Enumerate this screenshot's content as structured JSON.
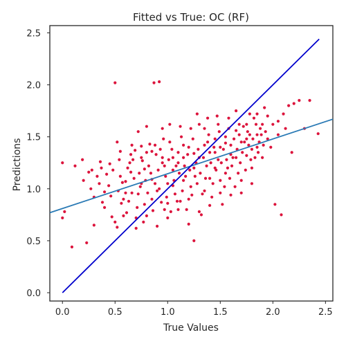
{
  "chart_data": {
    "type": "scatter",
    "title": "Fitted vs True: OC (RF)",
    "xlabel": "True Values",
    "ylabel": "Predictions",
    "xlim": [
      -0.12,
      2.57
    ],
    "ylim": [
      -0.08,
      2.57
    ],
    "x_ticks": [
      0.0,
      0.5,
      1.0,
      1.5,
      2.0,
      2.5
    ],
    "x_tick_labels": [
      "0.0",
      "0.5",
      "1.0",
      "1.5",
      "2.0",
      "2.5"
    ],
    "y_ticks": [
      0.0,
      0.5,
      1.0,
      1.5,
      2.0,
      2.5
    ],
    "y_tick_labels": [
      "0.0",
      "0.5",
      "1.0",
      "1.5",
      "2.0",
      "2.5"
    ],
    "grid": false,
    "legend": "none",
    "colors": {
      "points": "#dc143c",
      "identity_line": "#0000cc",
      "fit_line": "#2a7ab5",
      "axes": "#262626"
    },
    "identity_line": [
      [
        0.0,
        0.0
      ],
      [
        2.44,
        2.44
      ]
    ],
    "fit_line": [
      [
        -0.12,
        0.77
      ],
      [
        2.57,
        1.67
      ]
    ],
    "points": [
      [
        0.0,
        1.25
      ],
      [
        0.02,
        0.78
      ],
      [
        0.0,
        0.72
      ],
      [
        0.09,
        0.44
      ],
      [
        0.23,
        0.48
      ],
      [
        0.19,
        1.28
      ],
      [
        0.28,
        1.18
      ],
      [
        0.3,
        0.92
      ],
      [
        0.35,
        1.05
      ],
      [
        0.38,
        0.87
      ],
      [
        0.3,
        0.65
      ],
      [
        0.47,
        0.73
      ],
      [
        0.52,
        0.63
      ],
      [
        0.5,
        2.02
      ],
      [
        0.52,
        1.45
      ],
      [
        0.55,
        1.12
      ],
      [
        0.58,
        0.9
      ],
      [
        0.62,
        1.2
      ],
      [
        0.65,
        1.33
      ],
      [
        0.67,
        1.28
      ],
      [
        0.7,
        0.72
      ],
      [
        0.72,
        0.95
      ],
      [
        0.75,
        1.41
      ],
      [
        0.78,
        0.85
      ],
      [
        0.8,
        1.35
      ],
      [
        0.82,
        1.22
      ],
      [
        0.85,
        0.9
      ],
      [
        0.87,
        2.02
      ],
      [
        0.88,
        1.05
      ],
      [
        0.92,
        2.03
      ],
      [
        0.95,
        1.25
      ],
      [
        0.97,
        0.8
      ],
      [
        1.0,
        1.05
      ],
      [
        1.02,
        1.45
      ],
      [
        1.05,
        1.18
      ],
      [
        1.07,
        0.95
      ],
      [
        1.1,
        1.35
      ],
      [
        1.12,
        0.88
      ],
      [
        1.15,
        1.3
      ],
      [
        1.17,
        1.12
      ],
      [
        1.2,
        1.4
      ],
      [
        1.22,
        1.02
      ],
      [
        1.25,
        0.5
      ],
      [
        1.27,
        1.25
      ],
      [
        1.28,
        1.05
      ],
      [
        1.3,
        1.62
      ],
      [
        1.32,
        0.75
      ],
      [
        1.35,
        1.58
      ],
      [
        1.37,
        1.22
      ],
      [
        1.38,
        1.45
      ],
      [
        1.4,
        1.1
      ],
      [
        1.42,
        0.92
      ],
      [
        1.45,
        1.35
      ],
      [
        1.47,
        1.7
      ],
      [
        1.48,
        1.28
      ],
      [
        1.5,
        1.08
      ],
      [
        1.52,
        0.85
      ],
      [
        1.55,
        1.5
      ],
      [
        1.57,
        1.2
      ],
      [
        1.6,
        1.42
      ],
      [
        1.62,
        1.3
      ],
      [
        1.65,
        1.75
      ],
      [
        1.67,
        1.15
      ],
      [
        1.7,
        1.45
      ],
      [
        1.72,
        1.6
      ],
      [
        1.75,
        1.32
      ],
      [
        1.78,
        1.52
      ],
      [
        1.8,
        1.2
      ],
      [
        1.82,
        1.68
      ],
      [
        1.85,
        1.4
      ],
      [
        1.88,
        1.58
      ],
      [
        1.9,
        1.3
      ],
      [
        1.92,
        1.78
      ],
      [
        1.95,
        1.48
      ],
      [
        1.98,
        1.4
      ],
      [
        2.0,
        1.62
      ],
      [
        2.02,
        0.85
      ],
      [
        2.05,
        1.52
      ],
      [
        2.08,
        0.75
      ],
      [
        2.1,
        1.72
      ],
      [
        2.12,
        1.58
      ],
      [
        2.15,
        1.8
      ],
      [
        2.18,
        1.35
      ],
      [
        2.2,
        1.82
      ],
      [
        2.25,
        1.85
      ],
      [
        2.3,
        1.58
      ],
      [
        2.35,
        1.85
      ],
      [
        2.43,
        1.53
      ],
      [
        0.12,
        1.22
      ],
      [
        0.27,
        1.0
      ],
      [
        0.33,
        1.12
      ],
      [
        0.4,
        0.97
      ],
      [
        0.44,
        1.03
      ],
      [
        0.48,
        1.18
      ],
      [
        0.53,
        0.98
      ],
      [
        0.56,
        0.86
      ],
      [
        0.6,
        1.07
      ],
      [
        0.61,
        0.77
      ],
      [
        0.64,
        1.25
      ],
      [
        0.66,
        0.96
      ],
      [
        0.68,
        1.1
      ],
      [
        0.69,
        1.37
      ],
      [
        0.71,
        0.82
      ],
      [
        0.73,
        1.15
      ],
      [
        0.74,
        1.02
      ],
      [
        0.76,
        1.27
      ],
      [
        0.77,
        0.68
      ],
      [
        0.79,
        1.08
      ],
      [
        0.81,
        0.96
      ],
      [
        0.83,
        1.43
      ],
      [
        0.84,
        1.15
      ],
      [
        0.86,
        0.79
      ],
      [
        0.89,
        1.33
      ],
      [
        0.9,
        0.98
      ],
      [
        0.91,
        1.18
      ],
      [
        0.93,
        1.38
      ],
      [
        0.94,
        0.87
      ],
      [
        0.96,
        1.48
      ],
      [
        0.98,
        1.12
      ],
      [
        0.99,
        0.92
      ],
      [
        1.01,
        1.28
      ],
      [
        1.03,
        0.78
      ],
      [
        1.04,
        1.38
      ],
      [
        1.06,
        1.08
      ],
      [
        1.08,
        1.22
      ],
      [
        1.09,
        0.88
      ],
      [
        1.11,
        1.15
      ],
      [
        1.13,
        1.5
      ],
      [
        1.14,
        0.98
      ],
      [
        1.16,
        1.22
      ],
      [
        1.18,
        0.8
      ],
      [
        1.19,
        1.33
      ],
      [
        1.21,
        1.18
      ],
      [
        1.23,
        0.94
      ],
      [
        1.24,
        1.48
      ],
      [
        1.26,
        1.12
      ],
      [
        1.29,
        1.38
      ],
      [
        1.31,
        1.15
      ],
      [
        1.33,
        0.95
      ],
      [
        1.34,
        1.3
      ],
      [
        1.36,
        1.1
      ],
      [
        1.39,
        1.52
      ],
      [
        1.41,
        1.25
      ],
      [
        1.43,
        1.05
      ],
      [
        1.44,
        1.4
      ],
      [
        1.46,
        1.18
      ],
      [
        1.49,
        1.55
      ],
      [
        1.51,
        1.25
      ],
      [
        1.53,
        1.38
      ],
      [
        1.54,
        1.02
      ],
      [
        1.56,
        1.28
      ],
      [
        1.58,
        1.58
      ],
      [
        1.59,
        1.1
      ],
      [
        1.61,
        1.22
      ],
      [
        1.63,
        1.48
      ],
      [
        1.64,
        1.02
      ],
      [
        1.66,
        1.38
      ],
      [
        1.68,
        1.52
      ],
      [
        1.69,
        1.25
      ],
      [
        1.71,
        1.35
      ],
      [
        1.73,
        1.45
      ],
      [
        1.74,
        1.18
      ],
      [
        1.76,
        1.55
      ],
      [
        1.77,
        1.42
      ],
      [
        1.79,
        1.28
      ],
      [
        1.81,
        1.48
      ],
      [
        1.83,
        1.3
      ],
      [
        1.84,
        1.62
      ],
      [
        1.86,
        1.35
      ],
      [
        1.87,
        1.45
      ],
      [
        1.89,
        1.52
      ],
      [
        1.91,
        1.42
      ],
      [
        1.93,
        1.55
      ],
      [
        0.36,
        1.26
      ],
      [
        0.42,
        1.14
      ],
      [
        0.46,
        0.93
      ],
      [
        0.54,
        1.28
      ],
      [
        0.57,
        1.06
      ],
      [
        0.63,
        0.88
      ],
      [
        0.75,
        1.05
      ],
      [
        0.78,
        1.19
      ],
      [
        0.85,
        1.09
      ],
      [
        0.92,
        1.0
      ],
      [
        0.97,
        1.22
      ],
      [
        1.0,
        0.86
      ],
      [
        1.05,
        1.03
      ],
      [
        1.1,
        1.25
      ],
      [
        1.15,
        1.08
      ],
      [
        1.2,
        0.9
      ],
      [
        1.25,
        1.2
      ],
      [
        1.3,
        1.3
      ],
      [
        1.35,
        0.98
      ],
      [
        1.4,
        1.35
      ],
      [
        1.45,
        1.2
      ],
      [
        1.5,
        1.4
      ],
      [
        1.55,
        1.15
      ],
      [
        1.6,
        1.33
      ],
      [
        1.65,
        1.3
      ],
      [
        1.7,
        1.08
      ],
      [
        1.75,
        1.48
      ],
      [
        1.8,
        1.38
      ],
      [
        1.85,
        1.52
      ],
      [
        1.9,
        1.62
      ],
      [
        0.58,
        0.74
      ],
      [
        0.66,
        1.42
      ],
      [
        0.72,
        1.55
      ],
      [
        0.8,
        1.6
      ],
      [
        0.88,
        1.42
      ],
      [
        0.95,
        1.58
      ],
      [
        1.02,
        1.62
      ],
      [
        1.12,
        1.6
      ],
      [
        1.22,
        1.58
      ],
      [
        1.28,
        1.72
      ],
      [
        1.38,
        1.68
      ],
      [
        1.48,
        1.62
      ],
      [
        1.58,
        1.68
      ],
      [
        1.68,
        1.62
      ],
      [
        1.78,
        1.72
      ],
      [
        0.4,
        0.82
      ],
      [
        0.5,
        0.68
      ],
      [
        0.6,
        0.96
      ],
      [
        0.7,
        0.62
      ],
      [
        0.8,
        0.74
      ],
      [
        0.9,
        0.64
      ],
      [
        1.0,
        0.72
      ],
      [
        1.1,
        0.8
      ],
      [
        1.2,
        0.66
      ],
      [
        1.3,
        0.78
      ],
      [
        1.4,
        0.84
      ],
      [
        1.5,
        0.96
      ],
      [
        1.6,
        0.94
      ],
      [
        1.7,
        0.96
      ],
      [
        1.8,
        1.05
      ],
      [
        0.2,
        1.08
      ],
      [
        0.25,
        1.16
      ],
      [
        0.37,
        1.2
      ],
      [
        0.45,
        1.24
      ],
      [
        0.55,
        1.36
      ],
      [
        0.65,
        1.16
      ],
      [
        0.75,
        1.3
      ],
      [
        0.85,
        1.36
      ],
      [
        0.95,
        1.3
      ],
      [
        1.05,
        1.3
      ],
      [
        1.15,
        1.42
      ],
      [
        1.25,
        1.34
      ],
      [
        1.35,
        1.42
      ],
      [
        1.45,
        1.48
      ],
      [
        1.55,
        1.44
      ],
      [
        1.65,
        1.56
      ],
      [
        1.75,
        1.62
      ],
      [
        1.85,
        1.72
      ],
      [
        1.95,
        1.7
      ],
      [
        2.05,
        1.65
      ]
    ]
  }
}
